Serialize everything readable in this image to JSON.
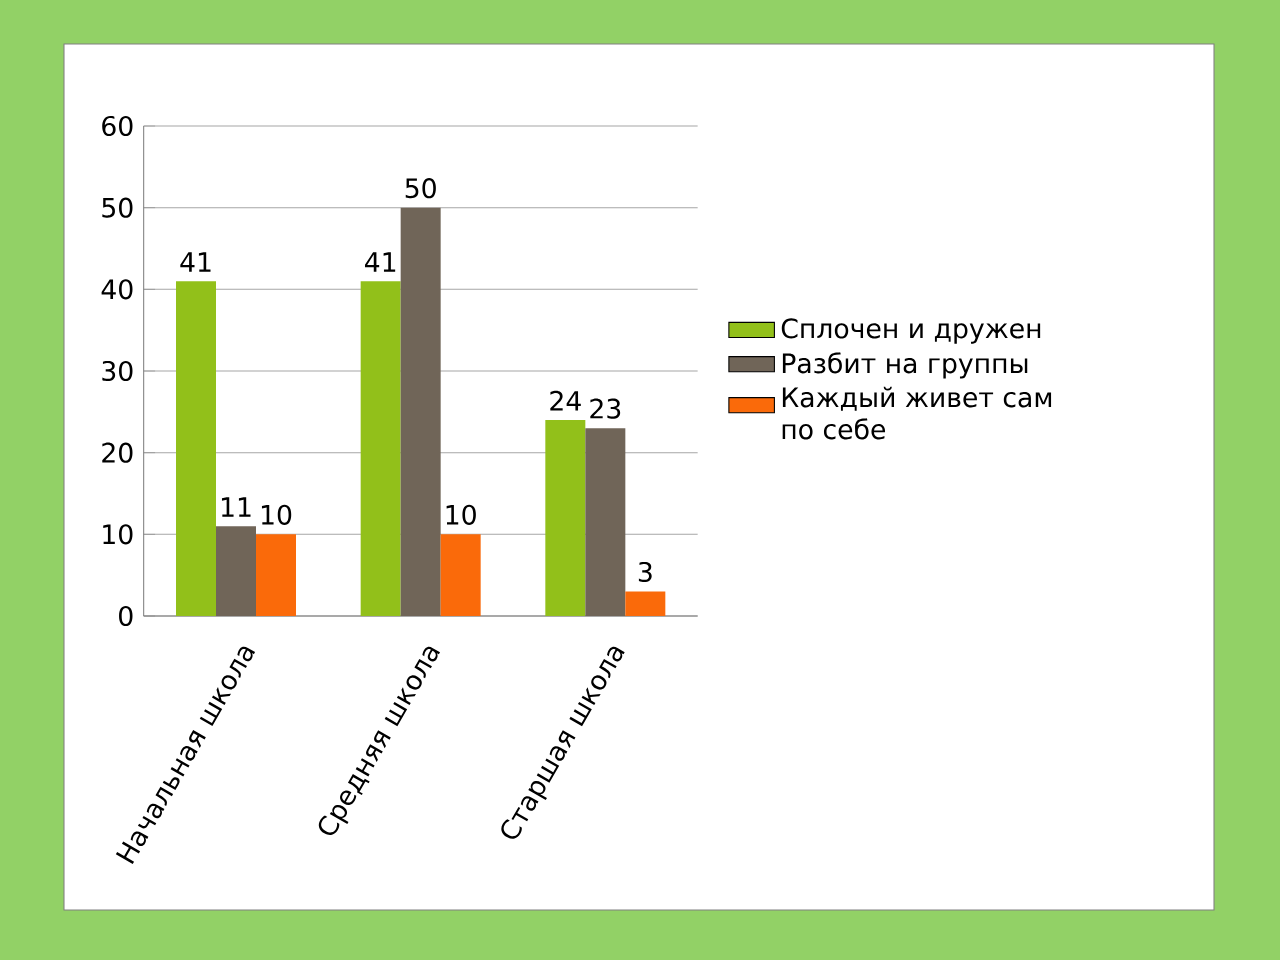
{
  "chart_data": {
    "type": "bar",
    "categories": [
      "Начальная школа",
      "Средняя школа",
      "Старшая школа"
    ],
    "series": [
      {
        "name": "Сплочен и дружен",
        "color": "#92c01a",
        "values": [
          41,
          41,
          24
        ]
      },
      {
        "name": "Разбит на группы",
        "color": "#706558",
        "values": [
          11,
          50,
          23
        ]
      },
      {
        "name": "Каждый живет сам по себе",
        "color": "#fa6a0a",
        "values": [
          10,
          10,
          3
        ]
      }
    ],
    "ylim": [
      0,
      60
    ],
    "yticks": [
      0,
      10,
      20,
      30,
      40,
      50,
      60
    ],
    "grid": "y",
    "legend": "right",
    "data_labels": true
  }
}
